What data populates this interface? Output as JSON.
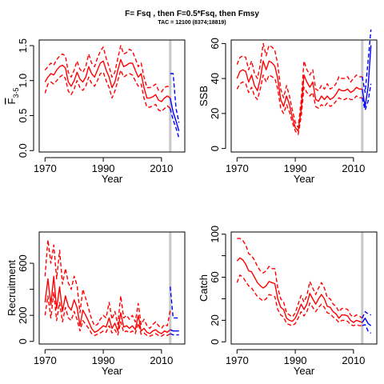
{
  "title": "F= Fsq , then F=0.5*Fsq, then Fmsy",
  "subtitle": "TAC = 12100 (8374;18819)",
  "colors": {
    "hist": "#ff0000",
    "proj": "#0000ff",
    "marker": "#c8c8c8"
  },
  "chart_data": [
    {
      "type": "line",
      "id": "f",
      "xlabel": "Year",
      "ylabel_main": "F",
      "ylabel_sub": "3-5",
      "xlim": [
        1968,
        2018
      ],
      "ylim": [
        -0.02,
        1.58
      ],
      "xticks": [
        1970,
        1990,
        2010
      ],
      "yticks": [
        0.0,
        0.5,
        1.0,
        1.5
      ],
      "ytick_labels": [
        "0.0",
        "0.5",
        "1.0",
        "1.5"
      ],
      "marker_year": 2013,
      "hist_years": [
        1970,
        1971,
        1972,
        1973,
        1974,
        1975,
        1976,
        1977,
        1978,
        1979,
        1980,
        1981,
        1982,
        1983,
        1984,
        1985,
        1986,
        1987,
        1988,
        1989,
        1990,
        1991,
        1992,
        1993,
        1994,
        1995,
        1996,
        1997,
        1998,
        1999,
        2000,
        2001,
        2002,
        2003,
        2004,
        2005,
        2006,
        2007,
        2008,
        2009,
        2010,
        2011,
        2012,
        2013
      ],
      "hist_mid": [
        0.98,
        1.05,
        1.1,
        1.08,
        1.15,
        1.2,
        1.22,
        1.18,
        0.98,
        0.92,
        1.0,
        1.12,
        1.02,
        0.98,
        1.05,
        1.2,
        1.1,
        1.05,
        1.15,
        1.25,
        1.28,
        1.15,
        1.05,
        0.9,
        0.98,
        1.15,
        1.3,
        1.2,
        1.22,
        1.25,
        1.25,
        1.15,
        1.05,
        1.1,
        0.9,
        0.75,
        0.75,
        0.77,
        0.8,
        0.72,
        0.7,
        0.75,
        0.78,
        0.75
      ],
      "hist_lo": [
        0.82,
        0.95,
        0.98,
        0.95,
        1.0,
        1.05,
        1.08,
        1.03,
        0.85,
        0.8,
        0.88,
        1.0,
        0.9,
        0.86,
        0.92,
        1.05,
        0.96,
        0.92,
        1.0,
        1.1,
        1.12,
        1.0,
        0.9,
        0.75,
        0.85,
        1.0,
        1.15,
        1.05,
        1.08,
        1.1,
        1.08,
        1.0,
        0.92,
        0.95,
        0.75,
        0.62,
        0.62,
        0.64,
        0.66,
        0.58,
        0.56,
        0.6,
        0.64,
        0.6
      ],
      "hist_hi": [
        1.15,
        1.2,
        1.25,
        1.22,
        1.3,
        1.35,
        1.38,
        1.35,
        1.12,
        1.05,
        1.15,
        1.28,
        1.16,
        1.12,
        1.2,
        1.38,
        1.25,
        1.2,
        1.32,
        1.42,
        1.48,
        1.32,
        1.2,
        1.05,
        1.12,
        1.32,
        1.5,
        1.38,
        1.4,
        1.45,
        1.42,
        1.32,
        1.2,
        1.25,
        1.05,
        0.9,
        0.9,
        0.92,
        0.95,
        0.86,
        0.84,
        0.9,
        0.92,
        0.9
      ],
      "proj_years": [
        2013,
        2014,
        2015,
        2016
      ],
      "proj_mid": [
        0.75,
        0.55,
        0.42,
        0.28
      ],
      "proj_lo": [
        0.6,
        0.44,
        0.32,
        0.18
      ],
      "proj_hi": [
        1.1,
        1.1,
        0.6,
        0.4
      ]
    },
    {
      "type": "line",
      "id": "ssb",
      "xlabel": "Year",
      "ylabel_main": "SSB",
      "xlim": [
        1968,
        2018
      ],
      "ylim": [
        -2,
        62
      ],
      "xticks": [
        1970,
        1990,
        2010
      ],
      "yticks": [
        0,
        20,
        40,
        60
      ],
      "ytick_labels": [
        "0",
        "20",
        "40",
        "60"
      ],
      "marker_year": 2013,
      "hist_years": [
        1970,
        1971,
        1972,
        1973,
        1974,
        1975,
        1976,
        1977,
        1978,
        1979,
        1980,
        1981,
        1982,
        1983,
        1984,
        1985,
        1986,
        1987,
        1988,
        1989,
        1990,
        1991,
        1992,
        1993,
        1994,
        1995,
        1996,
        1997,
        1998,
        1999,
        2000,
        2001,
        2002,
        2003,
        2004,
        2005,
        2006,
        2007,
        2008,
        2009,
        2010,
        2011,
        2012,
        2013
      ],
      "hist_mid": [
        40,
        44,
        45,
        44,
        38,
        42,
        36,
        33,
        40,
        50,
        45,
        50,
        49,
        47,
        40,
        28,
        24,
        30,
        25,
        18,
        12,
        10,
        22,
        42,
        38,
        35,
        38,
        28,
        27,
        30,
        28,
        30,
        28,
        29,
        31,
        34,
        33,
        33,
        34,
        32,
        33,
        35,
        34,
        34
      ],
      "hist_lo": [
        34,
        37,
        38,
        37,
        32,
        35,
        30,
        28,
        34,
        42,
        38,
        42,
        41,
        40,
        34,
        23,
        20,
        25,
        21,
        15,
        10,
        8,
        18,
        35,
        32,
        30,
        32,
        24,
        23,
        25,
        24,
        26,
        24,
        25,
        27,
        29,
        28,
        28,
        29,
        28,
        28,
        30,
        29,
        29
      ],
      "hist_hi": [
        48,
        52,
        53,
        52,
        45,
        50,
        43,
        40,
        48,
        60,
        53,
        59,
        58,
        56,
        48,
        34,
        29,
        36,
        30,
        22,
        15,
        12,
        27,
        50,
        45,
        42,
        45,
        34,
        33,
        36,
        34,
        37,
        34,
        35,
        37,
        41,
        40,
        40,
        41,
        38,
        40,
        42,
        41,
        41
      ],
      "proj_years": [
        2013,
        2014,
        2015,
        2016
      ],
      "proj_mid": [
        34,
        24,
        35,
        59
      ],
      "proj_lo": [
        29,
        22,
        27,
        37
      ],
      "proj_hi": [
        41,
        32,
        50,
        68
      ]
    },
    {
      "type": "line",
      "id": "recruitment",
      "xlabel": "Year",
      "ylabel_main": "Recruitment",
      "xlim": [
        1968,
        2018
      ],
      "ylim": [
        -20,
        840
      ],
      "xticks": [
        1970,
        1990,
        2010
      ],
      "yticks": [
        0,
        200,
        400,
        600
      ],
      "ytick_labels": [
        "0",
        "200",
        "600"
      ],
      "marker_year": 2013,
      "hist_years": [
        1970,
        1971,
        1972,
        1973,
        1974,
        1975,
        1976,
        1977,
        1978,
        1979,
        1980,
        1981,
        1982,
        1983,
        1984,
        1985,
        1986,
        1987,
        1988,
        1989,
        1990,
        1991,
        1992,
        1993,
        1994,
        1995,
        1996,
        1997,
        1998,
        1999,
        2000,
        2001,
        2002,
        2003,
        2004,
        2005,
        2006,
        2007,
        2008,
        2009,
        2010,
        2011,
        2012,
        2013
      ],
      "hist_mid": [
        300,
        480,
        280,
        500,
        250,
        420,
        230,
        350,
        270,
        240,
        320,
        260,
        120,
        240,
        200,
        150,
        100,
        70,
        80,
        100,
        120,
        110,
        180,
        100,
        140,
        80,
        220,
        110,
        120,
        100,
        120,
        90,
        200,
        80,
        100,
        70,
        60,
        80,
        90,
        70,
        60,
        80,
        70,
        90
      ],
      "hist_lo": [
        200,
        350,
        180,
        380,
        160,
        300,
        150,
        260,
        180,
        160,
        230,
        170,
        80,
        160,
        130,
        100,
        60,
        45,
        55,
        65,
        80,
        70,
        120,
        65,
        90,
        50,
        150,
        70,
        80,
        65,
        80,
        60,
        140,
        55,
        65,
        45,
        40,
        50,
        60,
        45,
        40,
        55,
        45,
        60
      ],
      "hist_hi": [
        500,
        780,
        600,
        740,
        480,
        700,
        440,
        560,
        450,
        400,
        500,
        430,
        220,
        400,
        330,
        250,
        170,
        120,
        130,
        170,
        200,
        180,
        300,
        170,
        230,
        130,
        350,
        180,
        200,
        170,
        200,
        150,
        290,
        130,
        170,
        120,
        100,
        130,
        150,
        120,
        100,
        130,
        120,
        240
      ],
      "proj_years": [
        2013,
        2014,
        2015,
        2016
      ],
      "proj_mid": [
        90,
        80,
        80,
        80
      ],
      "proj_lo": [
        60,
        50,
        50,
        50
      ],
      "proj_hi": [
        420,
        180,
        180,
        180
      ]
    },
    {
      "type": "line",
      "id": "catch",
      "xlabel": "Year",
      "ylabel_main": "Catch",
      "xlim": [
        1968,
        2018
      ],
      "ylim": [
        -2,
        102
      ],
      "xticks": [
        1970,
        1990,
        2010
      ],
      "yticks": [
        0,
        20,
        40,
        60,
        80,
        100
      ],
      "ytick_labels": [
        "0",
        "20",
        "60",
        "100"
      ],
      "marker_year": 2013,
      "hist_years": [
        1970,
        1971,
        1972,
        1973,
        1974,
        1975,
        1976,
        1977,
        1978,
        1979,
        1980,
        1981,
        1982,
        1983,
        1984,
        1985,
        1986,
        1987,
        1988,
        1989,
        1990,
        1991,
        1992,
        1993,
        1994,
        1995,
        1996,
        1997,
        1998,
        1999,
        2000,
        2001,
        2002,
        2003,
        2004,
        2005,
        2006,
        2007,
        2008,
        2009,
        2010,
        2011,
        2012,
        2013
      ],
      "hist_mid": [
        75,
        78,
        76,
        72,
        66,
        65,
        60,
        55,
        52,
        50,
        52,
        56,
        55,
        54,
        40,
        32,
        30,
        22,
        20,
        19,
        22,
        28,
        35,
        30,
        35,
        45,
        40,
        35,
        40,
        44,
        40,
        33,
        32,
        28,
        26,
        22,
        25,
        25,
        24,
        20,
        18,
        20,
        19,
        18
      ],
      "hist_lo": [
        55,
        62,
        60,
        56,
        52,
        50,
        46,
        42,
        40,
        38,
        40,
        44,
        43,
        42,
        30,
        25,
        23,
        17,
        16,
        15,
        17,
        22,
        28,
        24,
        28,
        36,
        32,
        28,
        32,
        35,
        32,
        27,
        26,
        23,
        21,
        18,
        20,
        20,
        19,
        16,
        15,
        16,
        15,
        15
      ],
      "hist_hi": [
        96,
        96,
        94,
        90,
        82,
        80,
        76,
        70,
        66,
        64,
        66,
        70,
        68,
        68,
        50,
        40,
        37,
        27,
        25,
        23,
        27,
        35,
        43,
        37,
        43,
        56,
        50,
        44,
        50,
        55,
        50,
        41,
        40,
        35,
        33,
        28,
        31,
        31,
        30,
        25,
        23,
        25,
        24,
        22
      ],
      "proj_years": [
        2013,
        2014,
        2015,
        2016
      ],
      "proj_mid": [
        18,
        22,
        17,
        15
      ],
      "proj_lo": [
        15,
        16,
        10,
        8
      ],
      "proj_hi": [
        22,
        28,
        26,
        25
      ]
    }
  ]
}
